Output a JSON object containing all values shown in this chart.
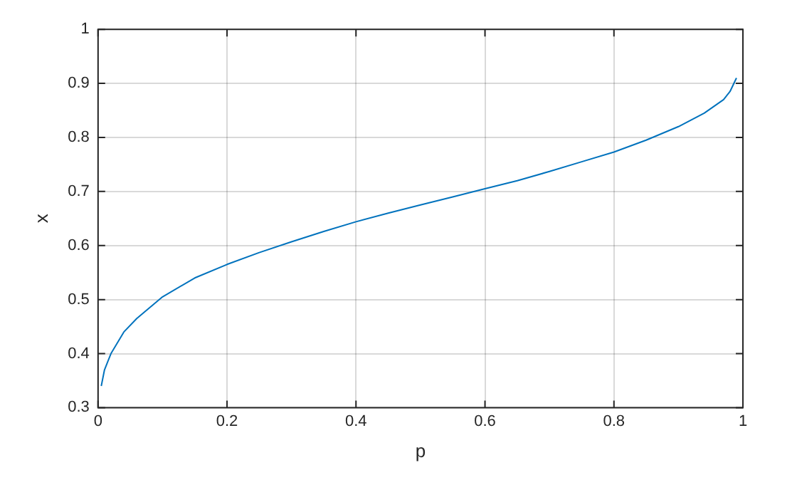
{
  "chart_data": {
    "type": "line",
    "xlabel": "p",
    "ylabel": "x",
    "x": [
      0.005,
      0.01,
      0.02,
      0.04,
      0.06,
      0.08,
      0.1,
      0.15,
      0.2,
      0.25,
      0.3,
      0.35,
      0.4,
      0.45,
      0.5,
      0.55,
      0.6,
      0.65,
      0.7,
      0.75,
      0.8,
      0.85,
      0.9,
      0.94,
      0.97,
      0.98,
      0.99
    ],
    "series": [
      {
        "color": "#0072bd",
        "values": [
          0.34,
          0.37,
          0.4,
          0.44,
          0.465,
          0.485,
          0.505,
          0.54,
          0.565,
          0.587,
          0.607,
          0.626,
          0.644,
          0.66,
          0.675,
          0.69,
          0.705,
          0.72,
          0.737,
          0.755,
          0.773,
          0.795,
          0.82,
          0.845,
          0.87,
          0.885,
          0.91
        ]
      }
    ],
    "xlim": [
      0,
      1
    ],
    "xticks": [
      0,
      0.2,
      0.4,
      0.6,
      0.8,
      1
    ],
    "ylim": [
      0.3,
      1
    ],
    "yticks": [
      0.3,
      0.4,
      0.5,
      0.6,
      0.7,
      0.8,
      0.9,
      1
    ],
    "grid": true,
    "legend": false,
    "marker": "none",
    "line_style": "solid"
  }
}
